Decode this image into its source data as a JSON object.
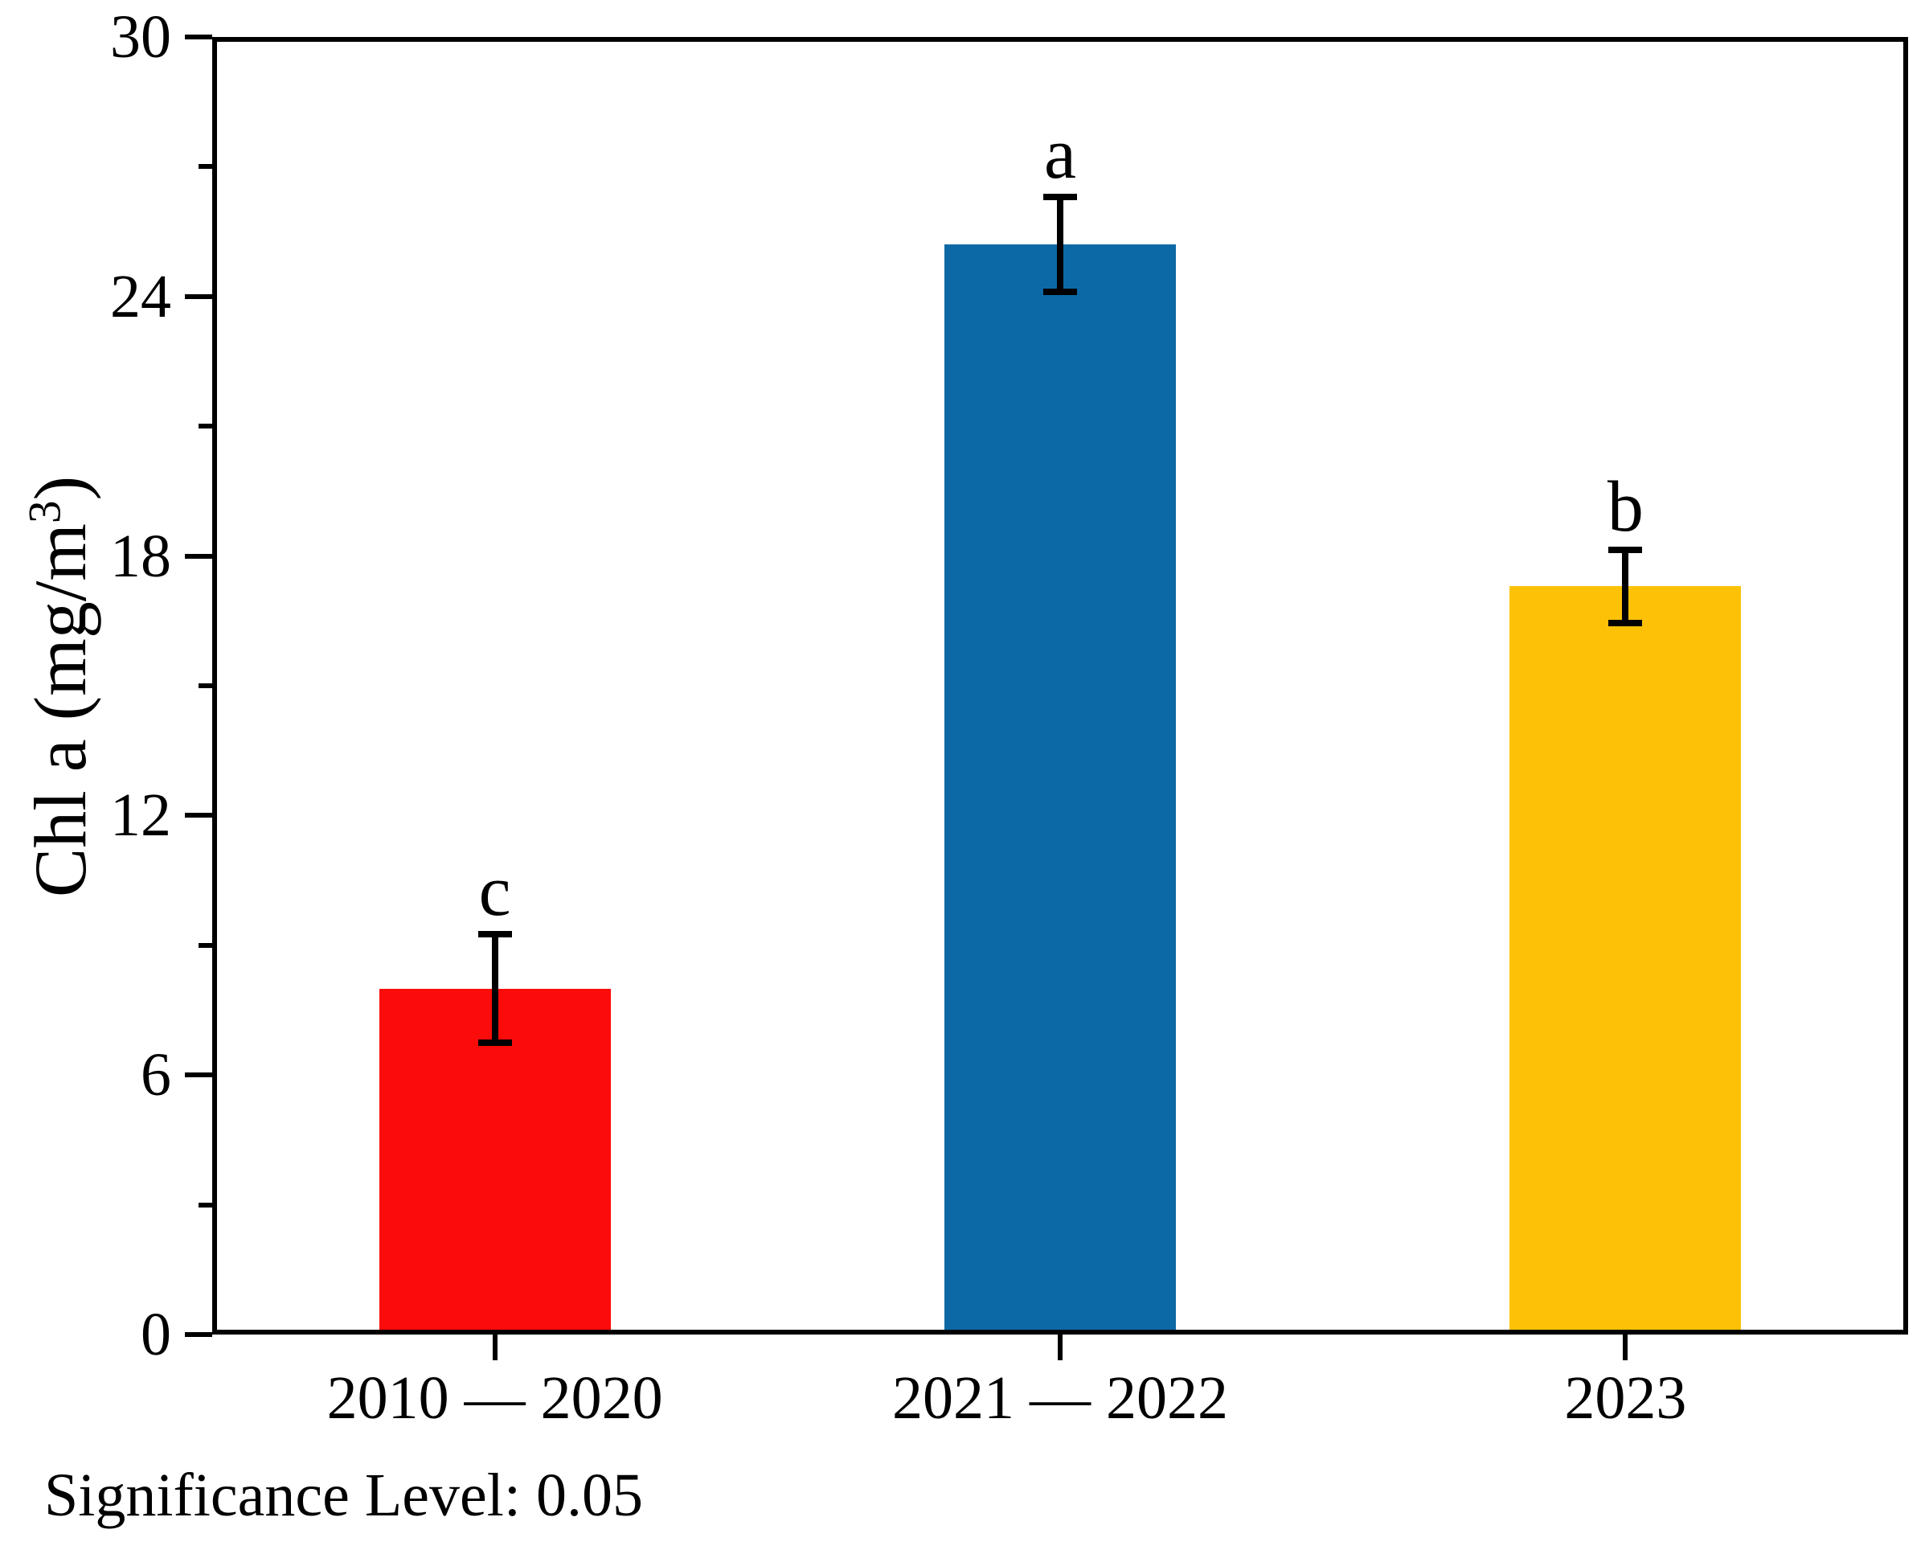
{
  "chart_data": {
    "type": "bar",
    "title": "",
    "categories": [
      "2010 — 2020",
      "2021 — 2022",
      "2023"
    ],
    "values": [
      8.0,
      25.2,
      17.3
    ],
    "errors": [
      1.25,
      1.1,
      0.85
    ],
    "significance_letters": [
      "c",
      "a",
      "b"
    ],
    "bar_colors": [
      "#fb0b09",
      "#0d69a6",
      "#fdc207"
    ],
    "xlabel": "",
    "ylabel": "Chl a (mg/m³)",
    "ylim": [
      0,
      30
    ],
    "yticks": [
      0,
      6,
      12,
      18,
      24,
      30
    ],
    "yticks_minor": [
      3,
      9,
      15,
      21,
      27
    ],
    "grid": false,
    "legend_position": "none",
    "footnote": "Significance Level: 0.05",
    "axis_color": "#000000",
    "background_color": "#ffffff"
  },
  "ylabel_parts": {
    "main": "Chl a (mg/m",
    "sup": "3",
    "close": ")"
  }
}
